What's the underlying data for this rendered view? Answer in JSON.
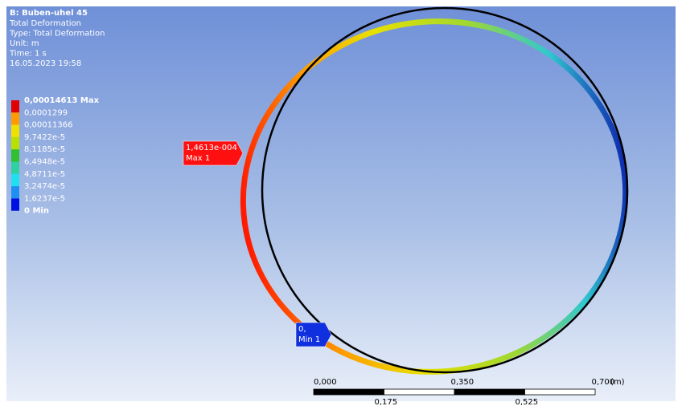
{
  "header": {
    "title": "B: Buben-uhel 45",
    "lines": [
      "Total Deformation",
      "Type: Total Deformation",
      "Unit: m",
      "Time: 1 s",
      "16.05.2023 19:58"
    ]
  },
  "legend": {
    "entries": [
      "0,00014613 Max",
      "0,0001299",
      "0,00011366",
      "9,7422e-5",
      "8,1185e-5",
      "6,4948e-5",
      "4,8711e-5",
      "3,2474e-5",
      "1,6237e-5",
      "0 Min"
    ]
  },
  "probes": [
    {
      "value": "1,4613e-004",
      "label": "Max 1"
    },
    {
      "value": "0,",
      "label": "Min 1"
    }
  ],
  "scale": {
    "top": [
      "0,000",
      "0,350",
      "0,700"
    ],
    "bottom": [
      "0,175",
      "0,525"
    ],
    "unit": "(m)"
  }
}
